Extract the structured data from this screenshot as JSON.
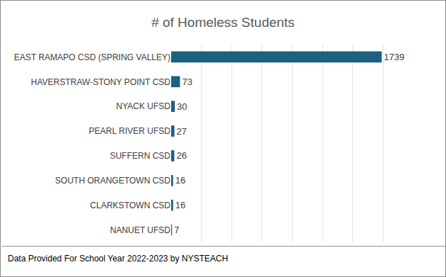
{
  "chart_data": {
    "type": "bar",
    "orientation": "horizontal",
    "title": "# of Homeless Students",
    "categories": [
      "EAST RAMAPO CSD (SPRING VALLEY)",
      "HAVERSTRAW-STONY POINT CSD",
      "NYACK UFSD",
      "PEARL RIVER UFSD",
      "SUFFERN CSD",
      "SOUTH ORANGETOWN CSD",
      "CLARKSTOWN CSD",
      "NANUET UFSD"
    ],
    "values": [
      1739,
      73,
      30,
      27,
      26,
      16,
      16,
      7
    ],
    "color": "#1f5f80",
    "xlim": [
      0,
      2000
    ],
    "xticks": [
      0,
      250,
      500,
      750,
      1000,
      1250,
      1500,
      1750,
      2000
    ],
    "grid": true,
    "data_labels": true,
    "tick_labels": "y",
    "annotations": [
      "Data Provided For School Year 2022-2023 by NYSTEACH"
    ]
  }
}
